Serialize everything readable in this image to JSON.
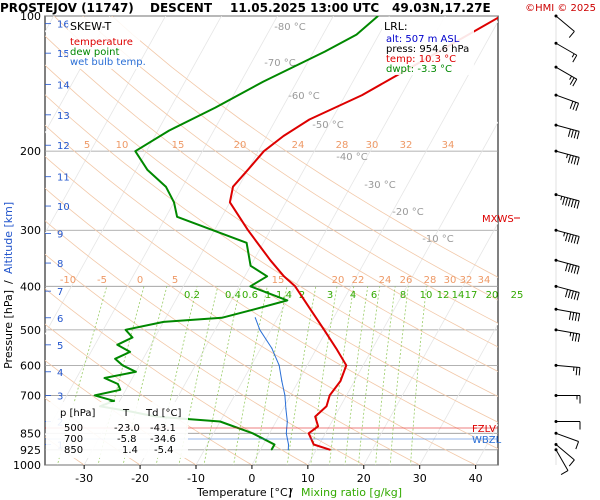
{
  "header": {
    "station": "PROSTEJOV (11747)",
    "mode": "DESCENT",
    "datetime": "11.05.2025 13:00 UTC",
    "coords": "49.03N,17.27E",
    "copyright": "©HMI © 2025"
  },
  "legend": {
    "title": "SKEW-T",
    "items": [
      {
        "label": "temperature",
        "color": "#dd0000"
      },
      {
        "label": "dew point",
        "color": "#008800"
      },
      {
        "label": "wet bulb temp.",
        "color": "#2a6fd6"
      }
    ]
  },
  "lrl": {
    "title": "LRL:",
    "alt": "alt: 507 m ASL",
    "press": "press: 954.6 hPa",
    "temp": "temp: 10.3 °C",
    "dwpt": "dwpt: -3.3 °C",
    "colors": {
      "alt": "#0000cc",
      "press": "#000000",
      "temp": "#dd0000",
      "dwpt": "#008800"
    }
  },
  "axes": {
    "xlabel_temp": "Temperature [°C]",
    "xlabel_sep": "/",
    "xlabel_mix": "Mixing ratio [g/kg]",
    "ylabel_press": "Pressure [hPa]",
    "ylabel_sep": "/",
    "ylabel_alt": "Altitude [km]"
  },
  "table": {
    "headers": [
      "p [hPa]",
      "T",
      "Td [°C]"
    ],
    "rows": [
      [
        "500",
        "-23.0",
        "-43.1"
      ],
      [
        "700",
        "-5.8",
        "-34.6"
      ],
      [
        "850",
        "1.4",
        "-5.4"
      ]
    ]
  },
  "levels": [
    {
      "label": "MXWS",
      "color": "#dd0000"
    },
    {
      "label": "FZLV",
      "color": "#dd0000"
    },
    {
      "label": "WBZL",
      "color": "#2a6fd6"
    }
  ],
  "chart_data": {
    "type": "line",
    "title": "PROSTEJOV (11747) DESCENT 11.05.2025 13:00 UTC 49.03N,17.27E",
    "xlabel": "Temperature [°C] / Mixing ratio [g/kg]",
    "ylabel": "Pressure [hPa] / Altitude [km]",
    "x_ticks": [
      -30,
      -20,
      -10,
      0,
      10,
      20,
      30,
      40
    ],
    "xlim": [
      -37,
      44
    ],
    "y_ticks": [
      100,
      200,
      300,
      400,
      500,
      600,
      700,
      850,
      925,
      1000
    ],
    "ylim": [
      1000,
      100
    ],
    "y_scale": "log",
    "altitude_ticks_km": [
      1,
      2,
      3,
      4,
      5,
      6,
      7,
      8,
      9,
      10,
      11,
      12,
      13,
      14,
      15,
      16
    ],
    "isotherm_labels": [
      -80,
      -70,
      -60,
      -50,
      -40,
      -30,
      -20,
      -10
    ],
    "mixing_ratio_labels": [
      "0.2",
      "0.4",
      "0.6",
      "1",
      "1.4",
      "2",
      "3",
      "4",
      "6",
      "8",
      "10",
      "12",
      "14",
      "17",
      "20",
      "25"
    ],
    "theta_labels_upper": [
      5,
      10,
      15,
      20,
      24,
      28,
      30,
      32,
      34
    ],
    "theta_labels_lower": [
      -10,
      -5,
      0,
      5,
      15,
      20,
      22,
      24,
      26,
      28,
      30,
      32,
      34
    ],
    "grid": true,
    "series": [
      {
        "name": "temperature",
        "points": [
          [
            925,
            12.5
          ],
          [
            900,
            9
          ],
          [
            850,
            7
          ],
          [
            820,
            8
          ],
          [
            780,
            6.5
          ],
          [
            740,
            7.5
          ],
          [
            700,
            7
          ],
          [
            650,
            7.5
          ],
          [
            600,
            7
          ],
          [
            550,
            3.5
          ],
          [
            500,
            -0.5
          ],
          [
            450,
            -5
          ],
          [
            400,
            -10
          ],
          [
            380,
            -13
          ],
          [
            350,
            -17
          ],
          [
            300,
            -24
          ],
          [
            260,
            -30
          ],
          [
            240,
            -31
          ],
          [
            220,
            -30
          ],
          [
            200,
            -29
          ],
          [
            185,
            -27
          ],
          [
            170,
            -24
          ],
          [
            150,
            -17
          ],
          [
            130,
            -11
          ],
          [
            110,
            -4
          ],
          [
            100,
            0
          ]
        ]
      },
      {
        "name": "dew point",
        "points": [
          [
            925,
            2
          ],
          [
            900,
            2
          ],
          [
            870,
            -1
          ],
          [
            850,
            -3
          ],
          [
            800,
            -10
          ],
          [
            780,
            -22
          ],
          [
            760,
            -27
          ],
          [
            740,
            -33
          ],
          [
            720,
            -31
          ],
          [
            700,
            -35
          ],
          [
            680,
            -31
          ],
          [
            660,
            -32
          ],
          [
            640,
            -35
          ],
          [
            620,
            -30
          ],
          [
            600,
            -33
          ],
          [
            580,
            -35
          ],
          [
            560,
            -33
          ],
          [
            540,
            -36
          ],
          [
            520,
            -34
          ],
          [
            500,
            -36
          ],
          [
            480,
            -30
          ],
          [
            470,
            -20
          ],
          [
            450,
            -15
          ],
          [
            430,
            -10
          ],
          [
            400,
            -18
          ],
          [
            380,
            -16
          ],
          [
            360,
            -20
          ],
          [
            320,
            -23
          ],
          [
            280,
            -38
          ],
          [
            260,
            -40
          ],
          [
            240,
            -43
          ],
          [
            220,
            -48
          ],
          [
            200,
            -52
          ],
          [
            180,
            -48
          ],
          [
            160,
            -42
          ],
          [
            140,
            -36
          ],
          [
            120,
            -28
          ],
          [
            110,
            -24
          ],
          [
            100,
            -22
          ]
        ]
      },
      {
        "name": "wet bulb temp.",
        "points": [
          [
            925,
            5
          ],
          [
            900,
            4.5
          ],
          [
            850,
            3
          ],
          [
            800,
            2
          ],
          [
            750,
            0.5
          ],
          [
            700,
            -1
          ],
          [
            650,
            -3
          ],
          [
            600,
            -5
          ],
          [
            550,
            -8
          ],
          [
            500,
            -12
          ],
          [
            470,
            -14
          ]
        ]
      }
    ],
    "wind_barbs": [
      {
        "p": 925,
        "dir": 330,
        "spd": 10
      },
      {
        "p": 900,
        "dir": 310,
        "spd": 10
      },
      {
        "p": 850,
        "dir": 290,
        "spd": 10
      },
      {
        "p": 800,
        "dir": 270,
        "spd": 10
      },
      {
        "p": 700,
        "dir": 270,
        "spd": 15
      },
      {
        "p": 600,
        "dir": 275,
        "spd": 25
      },
      {
        "p": 500,
        "dir": 280,
        "spd": 35
      },
      {
        "p": 450,
        "dir": 280,
        "spd": 40
      },
      {
        "p": 400,
        "dir": 285,
        "spd": 50
      },
      {
        "p": 350,
        "dir": 285,
        "spd": 50
      },
      {
        "p": 300,
        "dir": 285,
        "spd": 55
      },
      {
        "p": 250,
        "dir": 285,
        "spd": 65
      },
      {
        "p": 200,
        "dir": 285,
        "spd": 45
      },
      {
        "p": 175,
        "dir": 285,
        "spd": 40
      },
      {
        "p": 150,
        "dir": 290,
        "spd": 30
      },
      {
        "p": 130,
        "dir": 300,
        "spd": 25
      },
      {
        "p": 115,
        "dir": 300,
        "spd": 15
      },
      {
        "p": 100,
        "dir": 310,
        "spd": 10
      }
    ]
  }
}
